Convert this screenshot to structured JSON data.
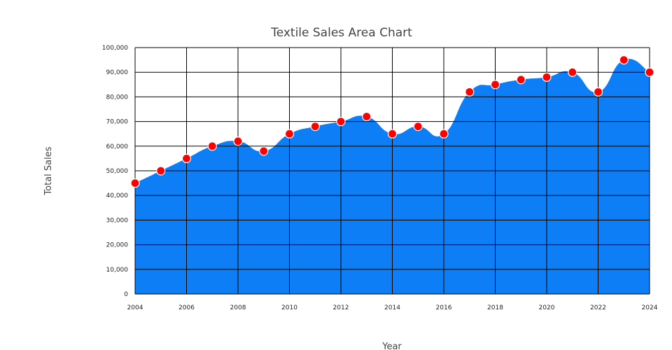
{
  "chart_data": {
    "type": "area",
    "title": "Textile Sales Area Chart",
    "xlabel": "Year",
    "ylabel": "Total Sales",
    "xlim": [
      2004,
      2024
    ],
    "ylim": [
      0,
      100000
    ],
    "x_ticks": [
      "2004",
      "2006",
      "2008",
      "2010",
      "2012",
      "2014",
      "2016",
      "2018",
      "2020",
      "2022",
      "2024"
    ],
    "y_ticks": [
      "0",
      "10,000",
      "20,000",
      "30,000",
      "40,000",
      "50,000",
      "60,000",
      "70,000",
      "80,000",
      "90,000",
      "100,000"
    ],
    "grid": true,
    "series": [
      {
        "x": [
          2004,
          2005,
          2006,
          2007,
          2008,
          2009,
          2010,
          2011,
          2012,
          2013,
          2014,
          2015,
          2016,
          2017,
          2018,
          2019,
          2020,
          2021,
          2022,
          2023,
          2024
        ],
        "values": [
          45000,
          50000,
          55000,
          60000,
          62000,
          58000,
          65000,
          68000,
          70000,
          72000,
          65000,
          68000,
          65000,
          82000,
          85000,
          87000,
          88000,
          90000,
          82000,
          95000,
          90000
        ],
        "fill_color": "#0d7ef5",
        "marker_color": "#ff0000",
        "marker_edge": "#ffffff"
      }
    ]
  }
}
